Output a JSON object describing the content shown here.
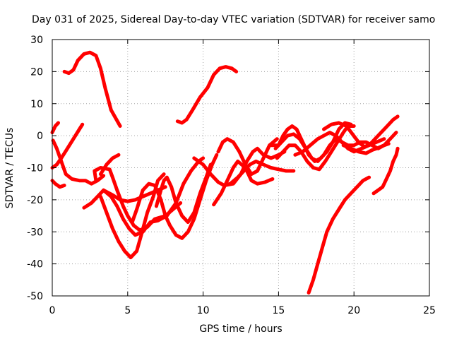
{
  "chart_data": {
    "type": "line",
    "title": "Day 031 of 2025, Sidereal Day-to-day VTEC variation (SDTVAR) for receiver samo",
    "xlabel": "GPS time / hours",
    "ylabel": "SDTVAR / TECUs",
    "xlim": [
      0,
      25
    ],
    "ylim": [
      -50,
      30
    ],
    "xticks": [
      0,
      5,
      10,
      15,
      20,
      25
    ],
    "yticks": [
      -50,
      -40,
      -30,
      -20,
      -10,
      0,
      10,
      20,
      30
    ],
    "grid": true,
    "legend": "none",
    "color": "#ff0000",
    "series": [
      {
        "points": [
          [
            0.8,
            20
          ],
          [
            1.1,
            19.5
          ],
          [
            1.4,
            20.5
          ],
          [
            1.7,
            23.5
          ],
          [
            2.1,
            25.5
          ],
          [
            2.5,
            26
          ],
          [
            2.9,
            25
          ],
          [
            3.2,
            21
          ],
          [
            3.5,
            15
          ],
          [
            3.9,
            8
          ],
          [
            4.5,
            3
          ]
        ]
      },
      {
        "points": [
          [
            8.3,
            4.5
          ],
          [
            8.6,
            4
          ],
          [
            8.9,
            5
          ],
          [
            9.3,
            8
          ],
          [
            9.8,
            12
          ],
          [
            10.3,
            15
          ],
          [
            10.7,
            19
          ],
          [
            11.1,
            21
          ],
          [
            11.5,
            21.5
          ],
          [
            11.9,
            21
          ],
          [
            12.2,
            20
          ]
        ]
      },
      {
        "points": [
          [
            0,
            1
          ],
          [
            0.2,
            3
          ],
          [
            0.4,
            4
          ]
        ]
      },
      {
        "points": [
          [
            0,
            -10
          ],
          [
            0.3,
            -9
          ],
          [
            0.6,
            -7
          ],
          [
            1,
            -4
          ],
          [
            1.4,
            -1
          ],
          [
            1.8,
            2
          ],
          [
            2,
            3.5
          ]
        ]
      },
      {
        "points": [
          [
            0.05,
            -1.5
          ],
          [
            0.3,
            -4
          ],
          [
            0.6,
            -8
          ],
          [
            0.9,
            -12
          ],
          [
            1.3,
            -13.5
          ],
          [
            1.8,
            -14
          ],
          [
            2.2,
            -14
          ],
          [
            2.6,
            -15
          ],
          [
            3,
            -14
          ],
          [
            3.4,
            -12.5
          ]
        ]
      },
      {
        "points": [
          [
            0,
            -14
          ],
          [
            0.2,
            -15
          ],
          [
            0.5,
            -16
          ],
          [
            0.8,
            -15.5
          ]
        ]
      },
      {
        "points": [
          [
            2.1,
            -22.5
          ],
          [
            2.6,
            -21
          ],
          [
            3,
            -19
          ],
          [
            3.4,
            -17
          ],
          [
            4,
            -18.5
          ],
          [
            4.5,
            -20
          ],
          [
            5,
            -20.5
          ],
          [
            5.5,
            -20
          ],
          [
            6,
            -19
          ],
          [
            6.5,
            -18
          ],
          [
            7,
            -17
          ],
          [
            7.5,
            -16
          ]
        ]
      },
      {
        "points": [
          [
            2.9,
            -14
          ],
          [
            2.8,
            -11
          ],
          [
            3.2,
            -10
          ],
          [
            3.8,
            -10.5
          ],
          [
            4,
            -13
          ],
          [
            4.3,
            -17
          ],
          [
            4.7,
            -22
          ],
          [
            5,
            -25
          ],
          [
            5.4,
            -28
          ],
          [
            5.8,
            -29.5
          ],
          [
            6.3,
            -28.5
          ],
          [
            6.8,
            -26
          ],
          [
            7.5,
            -25
          ],
          [
            8,
            -23
          ],
          [
            8.5,
            -21
          ]
        ]
      },
      {
        "points": [
          [
            3.2,
            -19
          ],
          [
            3.6,
            -24
          ],
          [
            4,
            -29
          ],
          [
            4.4,
            -33
          ],
          [
            4.8,
            -36
          ],
          [
            5.2,
            -38
          ],
          [
            5.6,
            -36
          ],
          [
            5.9,
            -31
          ],
          [
            6.3,
            -24
          ],
          [
            6.7,
            -19
          ],
          [
            7,
            -14
          ],
          [
            7.4,
            -12
          ]
        ]
      },
      {
        "points": [
          [
            3.2,
            -12
          ],
          [
            3.6,
            -9
          ],
          [
            4,
            -7
          ],
          [
            4.4,
            -6
          ]
        ]
      },
      {
        "points": [
          [
            3.4,
            -17
          ],
          [
            3.9,
            -19
          ],
          [
            4.3,
            -22
          ],
          [
            4.7,
            -26
          ],
          [
            5.1,
            -29
          ],
          [
            5.5,
            -31
          ],
          [
            6,
            -30
          ],
          [
            6.5,
            -27
          ],
          [
            7,
            -26.5
          ],
          [
            7.6,
            -25
          ],
          [
            8.2,
            -21
          ],
          [
            8.7,
            -15
          ],
          [
            9.2,
            -11
          ],
          [
            9.7,
            -8
          ],
          [
            10,
            -7
          ]
        ]
      },
      {
        "points": [
          [
            5.3,
            -27
          ],
          [
            5.6,
            -23
          ],
          [
            6,
            -17
          ],
          [
            6.4,
            -15
          ],
          [
            6.8,
            -15.5
          ],
          [
            7.2,
            -20
          ],
          [
            7.5,
            -25
          ],
          [
            7.8,
            -28
          ],
          [
            8.2,
            -31
          ],
          [
            8.6,
            -32
          ],
          [
            9,
            -30
          ],
          [
            9.4,
            -26
          ],
          [
            9.8,
            -20
          ],
          [
            10.2,
            -14
          ],
          [
            10.6,
            -9
          ],
          [
            10.9,
            -6
          ]
        ]
      },
      {
        "points": [
          [
            6.9,
            -22
          ],
          [
            7.2,
            -17
          ],
          [
            7.4,
            -14
          ],
          [
            7.6,
            -13
          ],
          [
            7.9,
            -16
          ],
          [
            8.2,
            -21
          ],
          [
            8.6,
            -25
          ],
          [
            9,
            -27
          ],
          [
            9.4,
            -24
          ],
          [
            9.8,
            -18
          ],
          [
            10.2,
            -13
          ],
          [
            10.5,
            -9
          ]
        ]
      },
      {
        "points": [
          [
            10.7,
            -21.5
          ],
          [
            11.2,
            -18
          ],
          [
            11.6,
            -14
          ],
          [
            12,
            -10
          ],
          [
            12.3,
            -8
          ],
          [
            12.8,
            -10
          ],
          [
            13.2,
            -14
          ],
          [
            13.6,
            -15
          ],
          [
            14.1,
            -14.5
          ],
          [
            14.6,
            -13.5
          ]
        ]
      },
      {
        "points": [
          [
            9.4,
            -7
          ],
          [
            10,
            -9
          ],
          [
            10.5,
            -12
          ],
          [
            11,
            -14.5
          ],
          [
            11.4,
            -15.5
          ],
          [
            11.8,
            -15
          ],
          [
            12.3,
            -13
          ],
          [
            12.7,
            -11
          ],
          [
            13.1,
            -9
          ],
          [
            13.5,
            -8
          ],
          [
            14,
            -9
          ],
          [
            14.5,
            -10
          ],
          [
            15,
            -10.5
          ],
          [
            15.5,
            -11
          ],
          [
            16,
            -11
          ]
        ]
      },
      {
        "points": [
          [
            11,
            -5
          ],
          [
            11.3,
            -2
          ],
          [
            11.6,
            -1
          ],
          [
            12,
            -2
          ],
          [
            12.4,
            -5
          ],
          [
            12.8,
            -9
          ],
          [
            13.2,
            -12
          ],
          [
            13.6,
            -11
          ],
          [
            14,
            -7
          ],
          [
            14.4,
            -3
          ],
          [
            14.9,
            -1
          ]
        ]
      },
      {
        "points": [
          [
            11.4,
            -15.5
          ],
          [
            12,
            -15
          ],
          [
            12.5,
            -12
          ],
          [
            12.9,
            -8
          ],
          [
            13.3,
            -5
          ],
          [
            13.6,
            -4
          ],
          [
            14,
            -6
          ],
          [
            14.5,
            -7
          ],
          [
            15,
            -6
          ],
          [
            15.4,
            -5
          ]
        ]
      },
      {
        "points": [
          [
            14.5,
            -3
          ],
          [
            15,
            -3
          ],
          [
            15.3,
            0
          ],
          [
            15.6,
            2
          ],
          [
            15.9,
            3
          ],
          [
            16.2,
            2
          ],
          [
            16.6,
            -2
          ],
          [
            17,
            -6
          ],
          [
            17.4,
            -8
          ],
          [
            17.8,
            -7
          ],
          [
            18.2,
            -5
          ],
          [
            18.6,
            -2
          ],
          [
            19,
            2
          ],
          [
            19.4,
            4
          ],
          [
            19.8,
            3.5
          ]
        ]
      },
      {
        "points": [
          [
            14.8,
            -4
          ],
          [
            15.2,
            -2
          ],
          [
            15.6,
            0
          ],
          [
            16,
            0.5
          ],
          [
            16.4,
            -1
          ],
          [
            16.8,
            -4
          ],
          [
            17.2,
            -7
          ],
          [
            17.6,
            -8
          ],
          [
            18,
            -6
          ],
          [
            18.4,
            -3
          ],
          [
            18.8,
            -1
          ],
          [
            19.2,
            -2
          ],
          [
            19.6,
            -4
          ],
          [
            20,
            -5
          ],
          [
            20.5,
            -4
          ],
          [
            21,
            -3
          ],
          [
            21.5,
            -2
          ],
          [
            22,
            -1
          ]
        ]
      },
      {
        "points": [
          [
            14.9,
            -7
          ],
          [
            15.3,
            -5
          ],
          [
            15.7,
            -3
          ],
          [
            16.1,
            -3
          ],
          [
            16.5,
            -5
          ],
          [
            16.9,
            -8
          ],
          [
            17.3,
            -10
          ],
          [
            17.7,
            -10.5
          ],
          [
            18.1,
            -8
          ],
          [
            18.5,
            -5
          ],
          [
            18.9,
            -2
          ],
          [
            19.3,
            1
          ],
          [
            19.6,
            3
          ],
          [
            20,
            3
          ]
        ]
      },
      {
        "points": [
          [
            16.1,
            -6
          ],
          [
            16.6,
            -5
          ],
          [
            17.1,
            -3
          ],
          [
            17.6,
            -1
          ],
          [
            18,
            0
          ],
          [
            18.4,
            1
          ],
          [
            18.8,
            0
          ],
          [
            19.2,
            -2
          ],
          [
            19.6,
            -3
          ],
          [
            20,
            -3
          ],
          [
            20.4,
            -2
          ],
          [
            20.8,
            -2
          ],
          [
            21.2,
            -3
          ],
          [
            21.6,
            -4
          ],
          [
            22,
            -3
          ],
          [
            22.4,
            -1
          ],
          [
            22.8,
            1
          ]
        ]
      },
      {
        "points": [
          [
            17,
            -49
          ],
          [
            17.3,
            -45
          ],
          [
            17.6,
            -40
          ],
          [
            17.9,
            -35
          ],
          [
            18.2,
            -30
          ],
          [
            18.6,
            -26
          ],
          [
            19,
            -23
          ],
          [
            19.4,
            -20
          ],
          [
            19.8,
            -18
          ],
          [
            20.2,
            -16
          ],
          [
            20.6,
            -14
          ],
          [
            21,
            -13
          ]
        ]
      },
      {
        "points": [
          [
            18,
            2
          ],
          [
            18.5,
            3.5
          ],
          [
            19,
            4
          ],
          [
            19.5,
            3
          ],
          [
            19.9,
            0.5
          ],
          [
            20.3,
            -2
          ],
          [
            20.7,
            -3.5
          ],
          [
            21.1,
            -2.5
          ],
          [
            21.6,
            0
          ],
          [
            22.1,
            2.5
          ],
          [
            22.6,
            5
          ],
          [
            22.9,
            6
          ]
        ]
      },
      {
        "points": [
          [
            19.3,
            -3
          ],
          [
            19.8,
            -4
          ],
          [
            20.3,
            -5
          ],
          [
            20.8,
            -5.5
          ],
          [
            21.2,
            -4.5
          ],
          [
            21.5,
            -4
          ],
          [
            22,
            -3
          ],
          [
            22.3,
            -2.5
          ]
        ]
      },
      {
        "points": [
          [
            21.3,
            -18
          ],
          [
            21.6,
            -17
          ],
          [
            21.9,
            -16
          ],
          [
            22.1,
            -14
          ],
          [
            22.4,
            -11
          ],
          [
            22.6,
            -8
          ],
          [
            22.8,
            -6
          ],
          [
            22.9,
            -4
          ]
        ]
      }
    ]
  }
}
